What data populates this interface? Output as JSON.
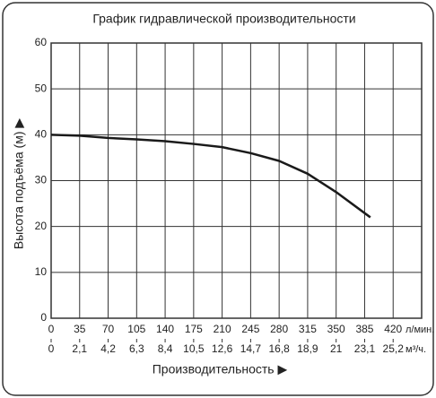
{
  "chart_data": {
    "type": "line",
    "title": "График гидравлической производительности",
    "x_label": "Производительность ▶",
    "y_label": "Высота подъёма (м) ▶",
    "x_unit": "л/мин.",
    "x2_unit": "м³/ч.",
    "x": [
      0,
      35,
      70,
      105,
      140,
      175,
      210,
      245,
      280,
      315,
      350,
      392
    ],
    "series": [
      {
        "color": "#1a1a1a",
        "values": [
          40,
          39.8,
          39.3,
          39,
          38.6,
          38,
          37.3,
          36,
          34.3,
          31.5,
          27.5,
          22
        ]
      }
    ],
    "xlim": [
      0,
      455
    ],
    "xticks": [
      0,
      35,
      70,
      105,
      140,
      175,
      210,
      245,
      280,
      315,
      350,
      385,
      420
    ],
    "x2lim": [
      0,
      27.3
    ],
    "x2ticks": [
      0,
      {
        "value": 2.1,
        "label": "2,1"
      },
      {
        "value": 4.2,
        "label": "4,2"
      },
      {
        "value": 6.3,
        "label": "6,3"
      },
      {
        "value": 8.4,
        "label": "8,4"
      },
      {
        "value": 10.5,
        "label": "10,5"
      },
      {
        "value": 12.6,
        "label": "12,6"
      },
      {
        "value": 14.7,
        "label": "14,7"
      },
      {
        "value": 16.8,
        "label": "16,8"
      },
      {
        "value": 18.9,
        "label": "18,9"
      },
      21,
      {
        "value": 23.1,
        "label": "23,1"
      },
      {
        "value": 25.2,
        "label": "25,2"
      }
    ],
    "ylim": [
      0,
      60
    ],
    "yticks": [
      0,
      10,
      20,
      30,
      40,
      50,
      60
    ],
    "grid": true
  }
}
